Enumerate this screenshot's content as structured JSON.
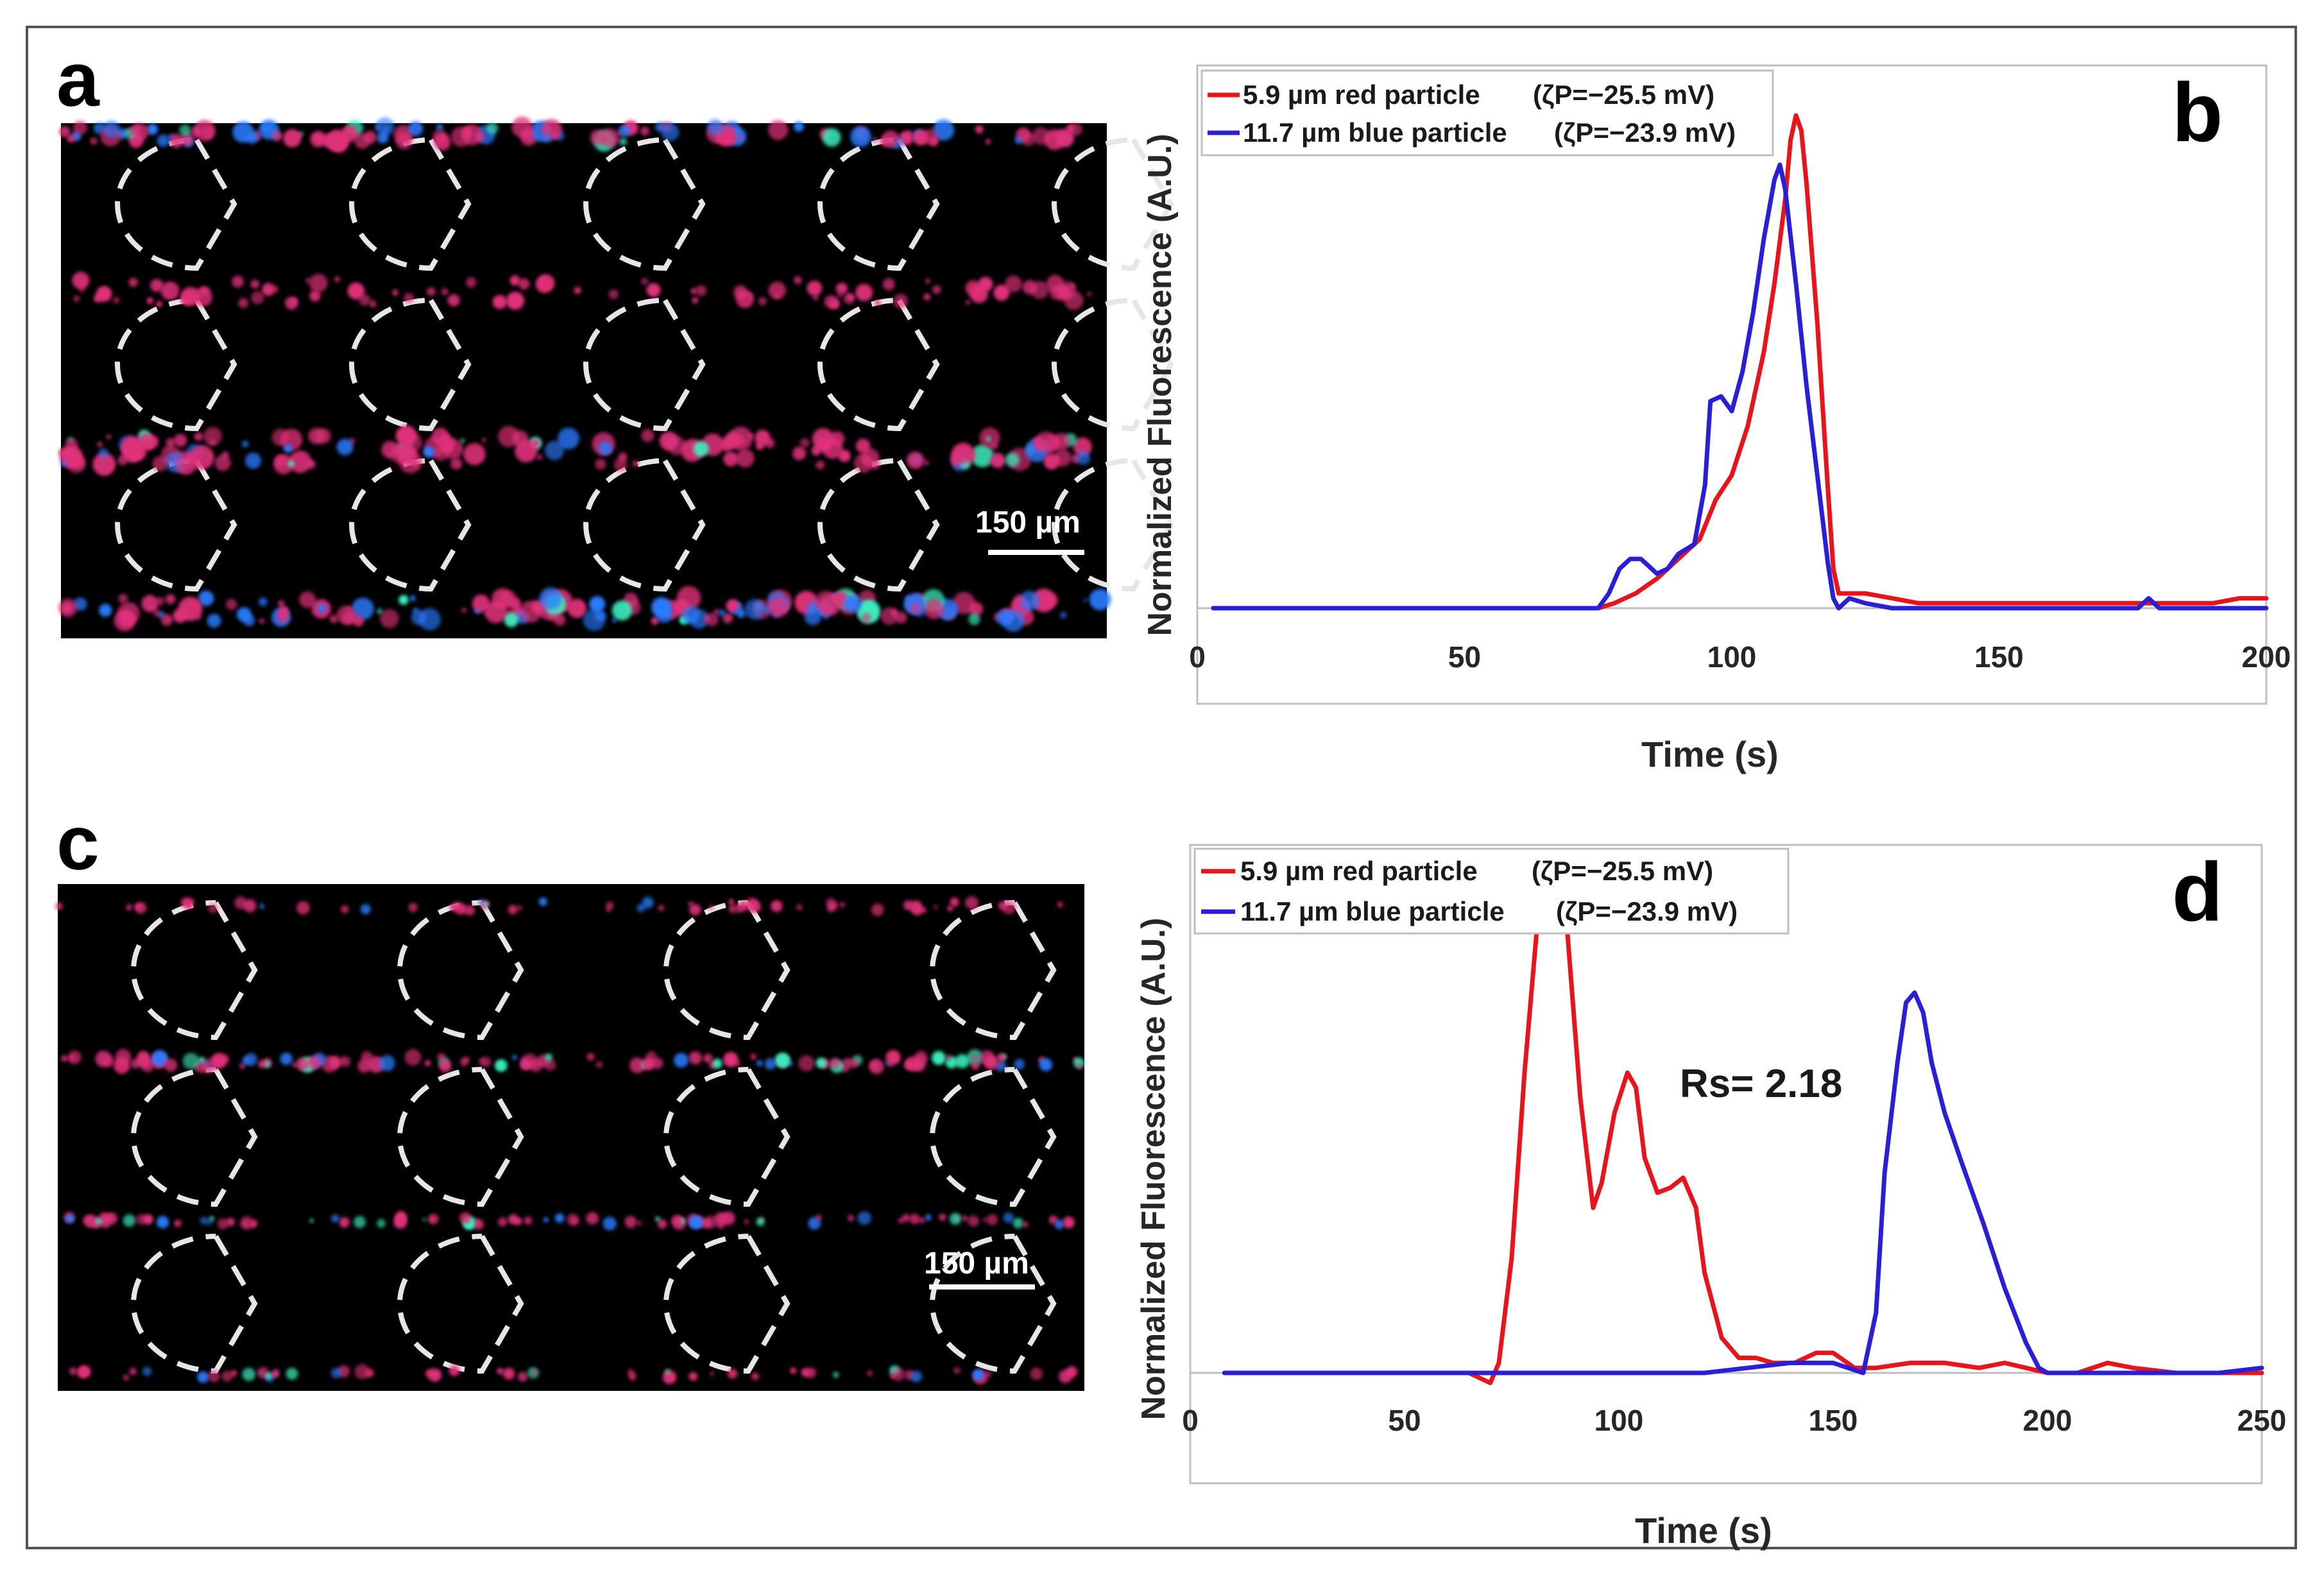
{
  "figure": {
    "panel_labels": {
      "a": "a",
      "b": "b",
      "c": "c",
      "d": "d"
    }
  },
  "images": {
    "a": {
      "scale_bar_label": "150 µm"
    },
    "c": {
      "scale_bar_label": "150 µm"
    }
  },
  "colors": {
    "red_series": "#e8141b",
    "blue_series": "#2a1fd6",
    "axis": "#bfbfbf",
    "micrograph_background": "#000000",
    "red_particles": "#e0307a",
    "blue_particles": "#2a7bff",
    "green_particles": "#3df0c0",
    "electrode_outline": "#e6e6e6"
  },
  "chart_data": [
    {
      "panel": "b",
      "type": "line",
      "xlabel": "Time (s)",
      "ylabel": "Normalized Fluorescence (A.U.)",
      "xlim": [
        0,
        200
      ],
      "ylim": [
        0,
        1.05
      ],
      "xticks": [
        0,
        50,
        100,
        150,
        200
      ],
      "xtick_labels": [
        "0",
        "50",
        "100",
        "150",
        "200"
      ],
      "grid": false,
      "legend_position": "top-left",
      "series": [
        {
          "name": "5.9 µm red particle",
          "zeta_label": "(ζP=−25.5 mV)",
          "color": "#e8141b",
          "x": [
            3,
            60,
            75,
            78,
            82,
            86,
            90,
            94,
            97,
            100,
            103,
            106,
            108,
            110,
            111,
            112,
            113,
            114,
            116,
            118,
            119,
            120,
            122,
            125,
            130,
            135,
            140,
            145,
            150,
            160,
            170,
            180,
            185,
            190,
            195,
            200
          ],
          "y": [
            0,
            0,
            0,
            0.01,
            0.03,
            0.06,
            0.1,
            0.14,
            0.22,
            0.27,
            0.37,
            0.52,
            0.66,
            0.83,
            0.95,
            1.0,
            0.97,
            0.86,
            0.58,
            0.24,
            0.08,
            0.03,
            0.03,
            0.03,
            0.02,
            0.01,
            0.01,
            0.01,
            0.01,
            0.01,
            0.01,
            0.01,
            0.01,
            0.01,
            0.02,
            0.02
          ]
        },
        {
          "name": "11.7 µm blue particle",
          "zeta_label": "(ζP=−23.9 mV)",
          "color": "#2a1fd6",
          "x": [
            3,
            60,
            75,
            77,
            79,
            81,
            83,
            86,
            88,
            90,
            93,
            95,
            96,
            98,
            100,
            102,
            104,
            106,
            108,
            109,
            110,
            112,
            114,
            116,
            118,
            119,
            120,
            122,
            125,
            130,
            140,
            150,
            160,
            170,
            176,
            178,
            180,
            185,
            190,
            200
          ],
          "y": [
            0,
            0,
            0,
            0.03,
            0.08,
            0.1,
            0.1,
            0.07,
            0.08,
            0.11,
            0.13,
            0.25,
            0.42,
            0.43,
            0.4,
            0.48,
            0.6,
            0.75,
            0.87,
            0.9,
            0.85,
            0.66,
            0.45,
            0.27,
            0.09,
            0.02,
            0.0,
            0.02,
            0.01,
            0.0,
            0.0,
            0.0,
            0.0,
            0.0,
            0.0,
            0.02,
            0.0,
            0.0,
            0.0,
            0.0
          ]
        }
      ]
    },
    {
      "panel": "d",
      "type": "line",
      "xlabel": "Time (s)",
      "ylabel": "Normalized Fluorescence (A.U.)",
      "xlim": [
        0,
        250
      ],
      "ylim": [
        0,
        1.05
      ],
      "xticks": [
        0,
        50,
        100,
        150,
        200,
        250
      ],
      "xtick_labels": [
        "0",
        "50",
        "100",
        "150",
        "200",
        "250"
      ],
      "grid": false,
      "legend_position": "top-left",
      "annotation": "Rs= 2.18",
      "series": [
        {
          "name": "5.9 µm red particle",
          "zeta_label": "(ζP=−25.5 mV)",
          "color": "#e8141b",
          "x": [
            8,
            60,
            65,
            70,
            72,
            75,
            78,
            81,
            84,
            86,
            88,
            91,
            94,
            96,
            99,
            102,
            104,
            106,
            109,
            112,
            115,
            118,
            120,
            124,
            128,
            132,
            136,
            141,
            146,
            150,
            155,
            160,
            168,
            176,
            184,
            190,
            195,
            200,
            207,
            214,
            220,
            230,
            240,
            250
          ],
          "y": [
            0,
            0,
            0,
            -0.02,
            0.02,
            0.23,
            0.6,
            0.9,
            1.0,
            0.98,
            0.88,
            0.55,
            0.33,
            0.38,
            0.52,
            0.6,
            0.57,
            0.43,
            0.36,
            0.37,
            0.39,
            0.33,
            0.2,
            0.07,
            0.03,
            0.03,
            0.02,
            0.02,
            0.04,
            0.04,
            0.01,
            0.01,
            0.02,
            0.02,
            0.01,
            0.02,
            0.01,
            0.0,
            0.0,
            0.02,
            0.01,
            0.0,
            0.0,
            0.0
          ]
        },
        {
          "name": "11.7 µm blue particle",
          "zeta_label": "(ζP=−23.9 mV)",
          "color": "#2a1fd6",
          "x": [
            8,
            100,
            120,
            130,
            140,
            150,
            157,
            160,
            162,
            165,
            167,
            169,
            171,
            173,
            176,
            180,
            185,
            190,
            195,
            198,
            200,
            205,
            210,
            220,
            230,
            240,
            250
          ],
          "y": [
            0,
            0,
            0,
            0.01,
            0.02,
            0.02,
            0.0,
            0.12,
            0.4,
            0.62,
            0.74,
            0.76,
            0.72,
            0.62,
            0.52,
            0.42,
            0.3,
            0.17,
            0.06,
            0.01,
            0.0,
            0.0,
            0.0,
            0.0,
            0.0,
            0.0,
            0.01
          ]
        }
      ]
    }
  ]
}
